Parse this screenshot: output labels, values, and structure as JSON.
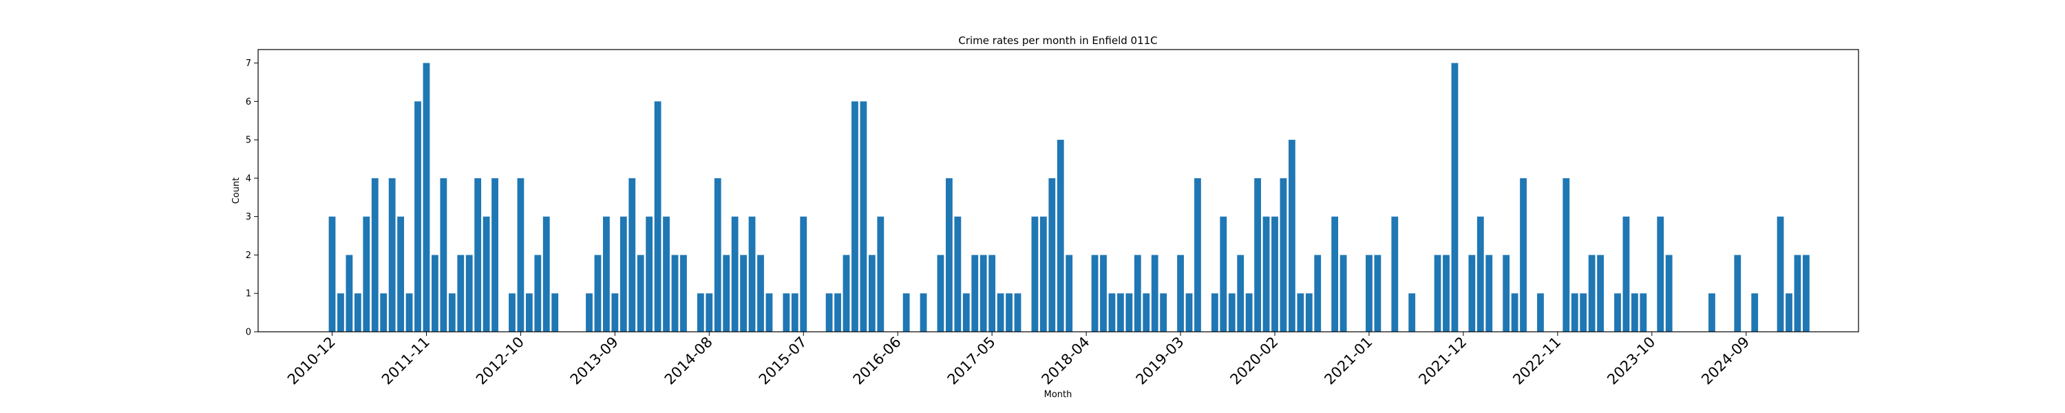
{
  "chart_data": {
    "type": "bar",
    "title": "Crime rates per month in Enfield 011C",
    "xlabel": "Month",
    "ylabel": "Count",
    "ylim": [
      0,
      7.35
    ],
    "yticks": [
      0,
      1,
      2,
      3,
      4,
      5,
      6,
      7
    ],
    "color": "#1f77b4",
    "x_start": "2010-12",
    "xticks": [
      "2010-12",
      "2011-11",
      "2012-10",
      "2013-09",
      "2014-08",
      "2015-07",
      "2016-06",
      "2017-05",
      "2018-04",
      "2019-03",
      "2020-02",
      "2021-01",
      "2021-12",
      "2022-11",
      "2023-10",
      "2024-09"
    ],
    "values": [
      3,
      1,
      2,
      1,
      3,
      4,
      1,
      4,
      3,
      1,
      6,
      7,
      2,
      4,
      1,
      2,
      2,
      4,
      3,
      4,
      0,
      1,
      4,
      1,
      2,
      3,
      1,
      0,
      0,
      0,
      1,
      2,
      3,
      1,
      3,
      4,
      2,
      3,
      6,
      3,
      2,
      2,
      0,
      1,
      1,
      4,
      2,
      3,
      2,
      3,
      2,
      1,
      0,
      1,
      1,
      3,
      0,
      0,
      1,
      1,
      2,
      6,
      6,
      2,
      3,
      0,
      0,
      1,
      0,
      1,
      0,
      2,
      4,
      3,
      1,
      2,
      2,
      2,
      1,
      1,
      1,
      0,
      3,
      3,
      4,
      5,
      2,
      0,
      0,
      2,
      2,
      1,
      1,
      1,
      2,
      1,
      2,
      1,
      0,
      2,
      1,
      4,
      0,
      1,
      3,
      1,
      2,
      1,
      4,
      3,
      3,
      4,
      5,
      1,
      1,
      2,
      0,
      3,
      2,
      0,
      0,
      2,
      2,
      0,
      3,
      0,
      1,
      0,
      0,
      2,
      2,
      7,
      0,
      2,
      3,
      2,
      0,
      2,
      1,
      4,
      0,
      1,
      0,
      0,
      4,
      1,
      1,
      2,
      2,
      0,
      1,
      3,
      1,
      1,
      0,
      3,
      2,
      0,
      0,
      0,
      0,
      1,
      0,
      0,
      2,
      0,
      1,
      0,
      0,
      3,
      1,
      2,
      2
    ]
  }
}
